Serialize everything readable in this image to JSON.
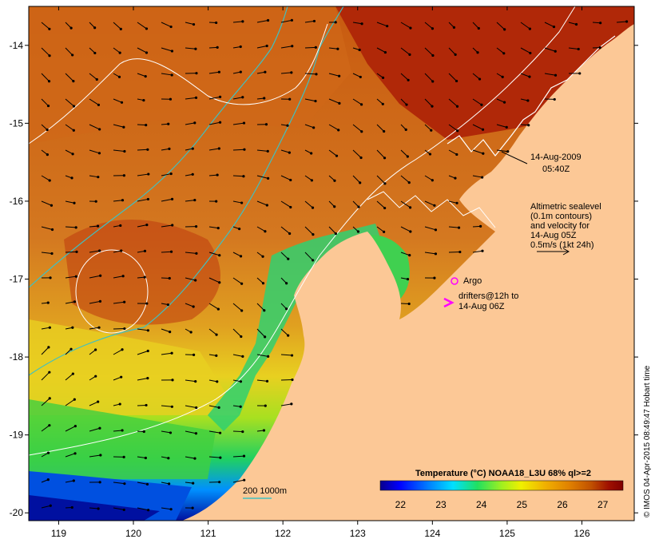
{
  "map": {
    "date": "14-Aug-2009",
    "time": "05:40Z",
    "altimetry_note": [
      "Altimetric sealevel",
      "(0.1m contours)",
      "and velocity for",
      "14-Aug 05Z"
    ],
    "velocity_scale": "0.5m/s (1kt 24h)",
    "argo_label": "Argo",
    "drifters_label": [
      "drifters@12h to",
      "14-Aug 06Z"
    ],
    "bathy_label": "200  1000m",
    "credit": "© IMOS 04-Apr-2015 08:49:47 Hobart time",
    "lon_ticks": [
      "119",
      "120",
      "121",
      "122",
      "123",
      "124",
      "125",
      "126"
    ],
    "lat_ticks": [
      "-14",
      "-15",
      "-16",
      "-17",
      "-18",
      "-19",
      "-20"
    ],
    "lon_range": [
      118.6,
      126.7
    ],
    "lat_range": [
      -20.1,
      -13.5
    ],
    "colors": {
      "land": "#fcc896",
      "argo": "#ff00ff",
      "bathy_contour": "#40c0c0",
      "sealevel_contour": "#ffffff"
    }
  },
  "colorbar": {
    "title": "Temperature (°C) NOAA18_L3U 68% ql>=2",
    "ticks": [
      "22",
      "23",
      "24",
      "25",
      "26",
      "27"
    ],
    "range": [
      21.5,
      27.5
    ],
    "colormap": [
      "#08008c",
      "#0000ff",
      "#0080ff",
      "#00e0ff",
      "#20e060",
      "#a0f020",
      "#f0f000",
      "#f0b000",
      "#e08000",
      "#c05000",
      "#a01000",
      "#800000"
    ]
  }
}
